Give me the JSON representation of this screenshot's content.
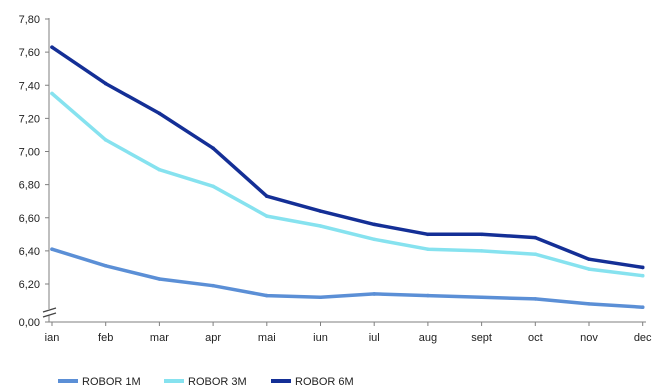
{
  "chart_data": {
    "type": "line",
    "categories": [
      "ian",
      "feb",
      "mar",
      "apr",
      "mai",
      "iun",
      "iul",
      "aug",
      "sept",
      "oct",
      "nov",
      "dec"
    ],
    "y_ticks": [
      "0,00",
      "6,20",
      "6,40",
      "6,60",
      "6,80",
      "7,00",
      "7,20",
      "7,40",
      "7,60",
      "7,80"
    ],
    "y_axis_break": {
      "below": "0,00",
      "above": "6,20"
    },
    "ylim": [
      6.0,
      7.8
    ],
    "grid": false,
    "legend_position": "bottom-left",
    "series": [
      {
        "name": "ROBOR 1M",
        "color": "#5b8fd6",
        "values": [
          6.41,
          6.31,
          6.23,
          6.19,
          6.13,
          6.12,
          6.14,
          6.13,
          6.12,
          6.11,
          6.08,
          6.06
        ]
      },
      {
        "name": "ROBOR 3M",
        "color": "#86e2ef",
        "values": [
          7.35,
          7.07,
          6.89,
          6.79,
          6.61,
          6.55,
          6.47,
          6.41,
          6.4,
          6.38,
          6.29,
          6.25
        ]
      },
      {
        "name": "ROBOR 6M",
        "color": "#142f96",
        "values": [
          7.63,
          7.41,
          7.23,
          7.02,
          6.73,
          6.64,
          6.56,
          6.5,
          6.5,
          6.48,
          6.35,
          6.3
        ]
      }
    ]
  }
}
